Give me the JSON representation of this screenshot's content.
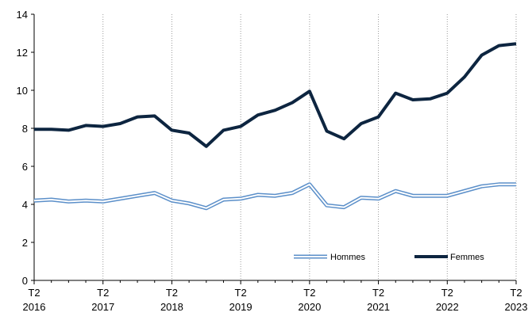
{
  "chart_data": {
    "type": "line",
    "title": "",
    "xlabel": "",
    "ylabel": "",
    "ylim": [
      0,
      14
    ],
    "yticks": [
      "0",
      "2",
      "4",
      "6",
      "8",
      "10",
      "12",
      "14"
    ],
    "x": [
      "T2 2016",
      "T3 2016",
      "T4 2016",
      "T1 2017",
      "T2 2017",
      "T3 2017",
      "T4 2017",
      "T1 2018",
      "T2 2018",
      "T3 2018",
      "T4 2018",
      "T1 2019",
      "T2 2019",
      "T3 2019",
      "T4 2019",
      "T1 2020",
      "T2 2020",
      "T3 2020",
      "T4 2020",
      "T1 2021",
      "T2 2021",
      "T3 2021",
      "T4 2021",
      "T1 2022",
      "T2 2022",
      "T3 2022",
      "T4 2022",
      "T1 2023",
      "T2 2023"
    ],
    "xticks": [
      {
        "quarter": "T2",
        "year": "2016"
      },
      {
        "quarter": "T2",
        "year": "2017"
      },
      {
        "quarter": "T2",
        "year": "2018"
      },
      {
        "quarter": "T2",
        "year": "2019"
      },
      {
        "quarter": "T2",
        "year": "2020"
      },
      {
        "quarter": "T2",
        "year": "2021"
      },
      {
        "quarter": "T2",
        "year": "2022"
      },
      {
        "quarter": "T2",
        "year": "2023"
      }
    ],
    "grid": "vertical dotted at each year",
    "legend_position": "bottom-right",
    "series": [
      {
        "name": "Hommes",
        "color": "#5b8fc9",
        "style": "double-line",
        "values": [
          4.2,
          4.25,
          4.15,
          4.2,
          4.15,
          4.3,
          4.45,
          4.6,
          4.2,
          4.05,
          3.8,
          4.25,
          4.3,
          4.5,
          4.45,
          4.6,
          5.05,
          3.95,
          3.85,
          4.35,
          4.3,
          4.7,
          4.45,
          4.45,
          4.45,
          4.7,
          4.95,
          5.05,
          5.05
        ]
      },
      {
        "name": "Femmes",
        "color": "#0d2540",
        "style": "thick-line",
        "values": [
          7.95,
          7.95,
          7.9,
          8.15,
          8.1,
          8.25,
          8.6,
          8.65,
          7.9,
          7.75,
          7.05,
          7.9,
          8.1,
          8.7,
          8.95,
          9.35,
          9.95,
          7.85,
          7.45,
          8.25,
          8.6,
          9.85,
          9.5,
          9.55,
          9.85,
          10.7,
          11.85,
          12.35,
          12.45
        ]
      }
    ]
  }
}
